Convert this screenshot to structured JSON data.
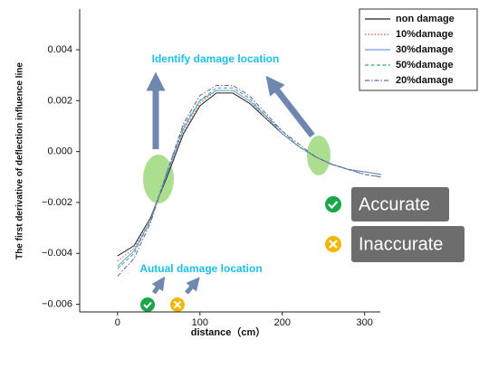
{
  "chart_data": {
    "type": "line",
    "xlabel": "distance（cm）",
    "ylabel": "The first derivative of deflection influence line",
    "x": [
      0,
      20,
      40,
      60,
      80,
      100,
      120,
      140,
      160,
      180,
      200,
      220,
      240,
      260,
      280,
      300,
      320
    ],
    "series": [
      {
        "name": "non damage",
        "color": "#222222",
        "linestyle": "solid",
        "values": [
          -0.0041,
          -0.0037,
          -0.0026,
          -0.001,
          0.0007,
          0.0018,
          0.0023,
          0.0023,
          0.0019,
          0.0013,
          0.0007,
          0.0002,
          -0.0002,
          -0.0005,
          -0.0007,
          -0.0008,
          -0.0009
        ]
      },
      {
        "name": "10%damage",
        "color": "#d9534f",
        "linestyle": "dotted",
        "values": [
          -0.0043,
          -0.0038,
          -0.0026,
          -0.0009,
          0.0008,
          0.0019,
          0.0024,
          0.0024,
          0.002,
          0.0013,
          0.0007,
          0.0002,
          -0.0002,
          -0.0005,
          -0.0007,
          -0.0008,
          -0.0009
        ]
      },
      {
        "name": "30%damage",
        "color": "#6a9fd8",
        "linestyle": "solid",
        "values": [
          -0.0045,
          -0.0039,
          -0.0027,
          -0.0009,
          0.0009,
          0.002,
          0.0024,
          0.0024,
          0.002,
          0.0014,
          0.0007,
          0.0002,
          -0.0002,
          -0.0005,
          -0.0007,
          -0.0008,
          -0.0009
        ]
      },
      {
        "name": "50%damage",
        "color": "#2aa88a",
        "linestyle": "dashed",
        "values": [
          -0.0046,
          -0.004,
          -0.0027,
          -0.0008,
          0.001,
          0.002,
          0.0025,
          0.0025,
          0.0021,
          0.0014,
          0.0008,
          0.0002,
          -0.0002,
          -0.0005,
          -0.0007,
          -0.0009,
          -0.001
        ]
      },
      {
        "name": "20%damage",
        "color": "#7a5aa6",
        "linestyle": "dashdot",
        "values": [
          -0.0049,
          -0.0042,
          -0.0028,
          -0.0008,
          0.0011,
          0.0022,
          0.0026,
          0.0026,
          0.0022,
          0.0015,
          0.0008,
          0.0003,
          -0.0002,
          -0.0005,
          -0.0007,
          -0.0009,
          -0.001
        ]
      }
    ],
    "xlim": [
      -46,
      319
    ],
    "xticks": [
      0,
      100,
      200,
      300
    ],
    "ylim": [
      -0.0063,
      0.0056
    ],
    "yticks": [
      {
        "value": -0.006,
        "label": "−0.006"
      },
      {
        "value": -0.004,
        "label": "−0.004"
      },
      {
        "value": -0.002,
        "label": "−0.002"
      },
      {
        "value": 0,
        "label": "0.000"
      },
      0.002,
      0.004
    ],
    "legend": "upper right",
    "annotations": [
      "Identify damage location",
      "Autual damage location",
      "Accurate",
      "Inaccurate"
    ]
  }
}
